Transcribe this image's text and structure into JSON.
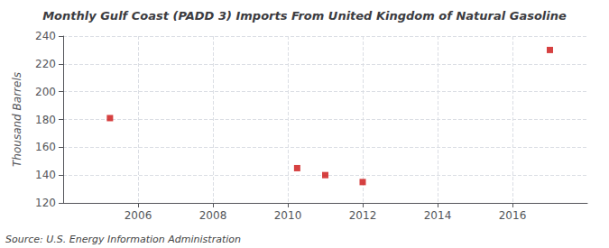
{
  "chart_data": {
    "type": "scatter",
    "title": "Monthly Gulf Coast (PADD 3) Imports From United Kingdom of Natural Gasoline",
    "ylabel": "Thousand Barrels",
    "annotations": [
      "Source: U.S. Energy Information Administration"
    ],
    "x": [
      2005.25,
      2010.25,
      2011.0,
      2012.0,
      2017.0
    ],
    "values": [
      181,
      145,
      140,
      135,
      230
    ],
    "color": "#cc1111",
    "marker": "square",
    "xlim": [
      2004.0,
      2018.0
    ],
    "ylim": [
      120,
      240
    ],
    "xticks": [
      2006,
      2008,
      2010,
      2012,
      2014,
      2016
    ],
    "yticks": [
      120,
      140,
      160,
      180,
      200,
      220,
      240
    ],
    "grid": true
  }
}
